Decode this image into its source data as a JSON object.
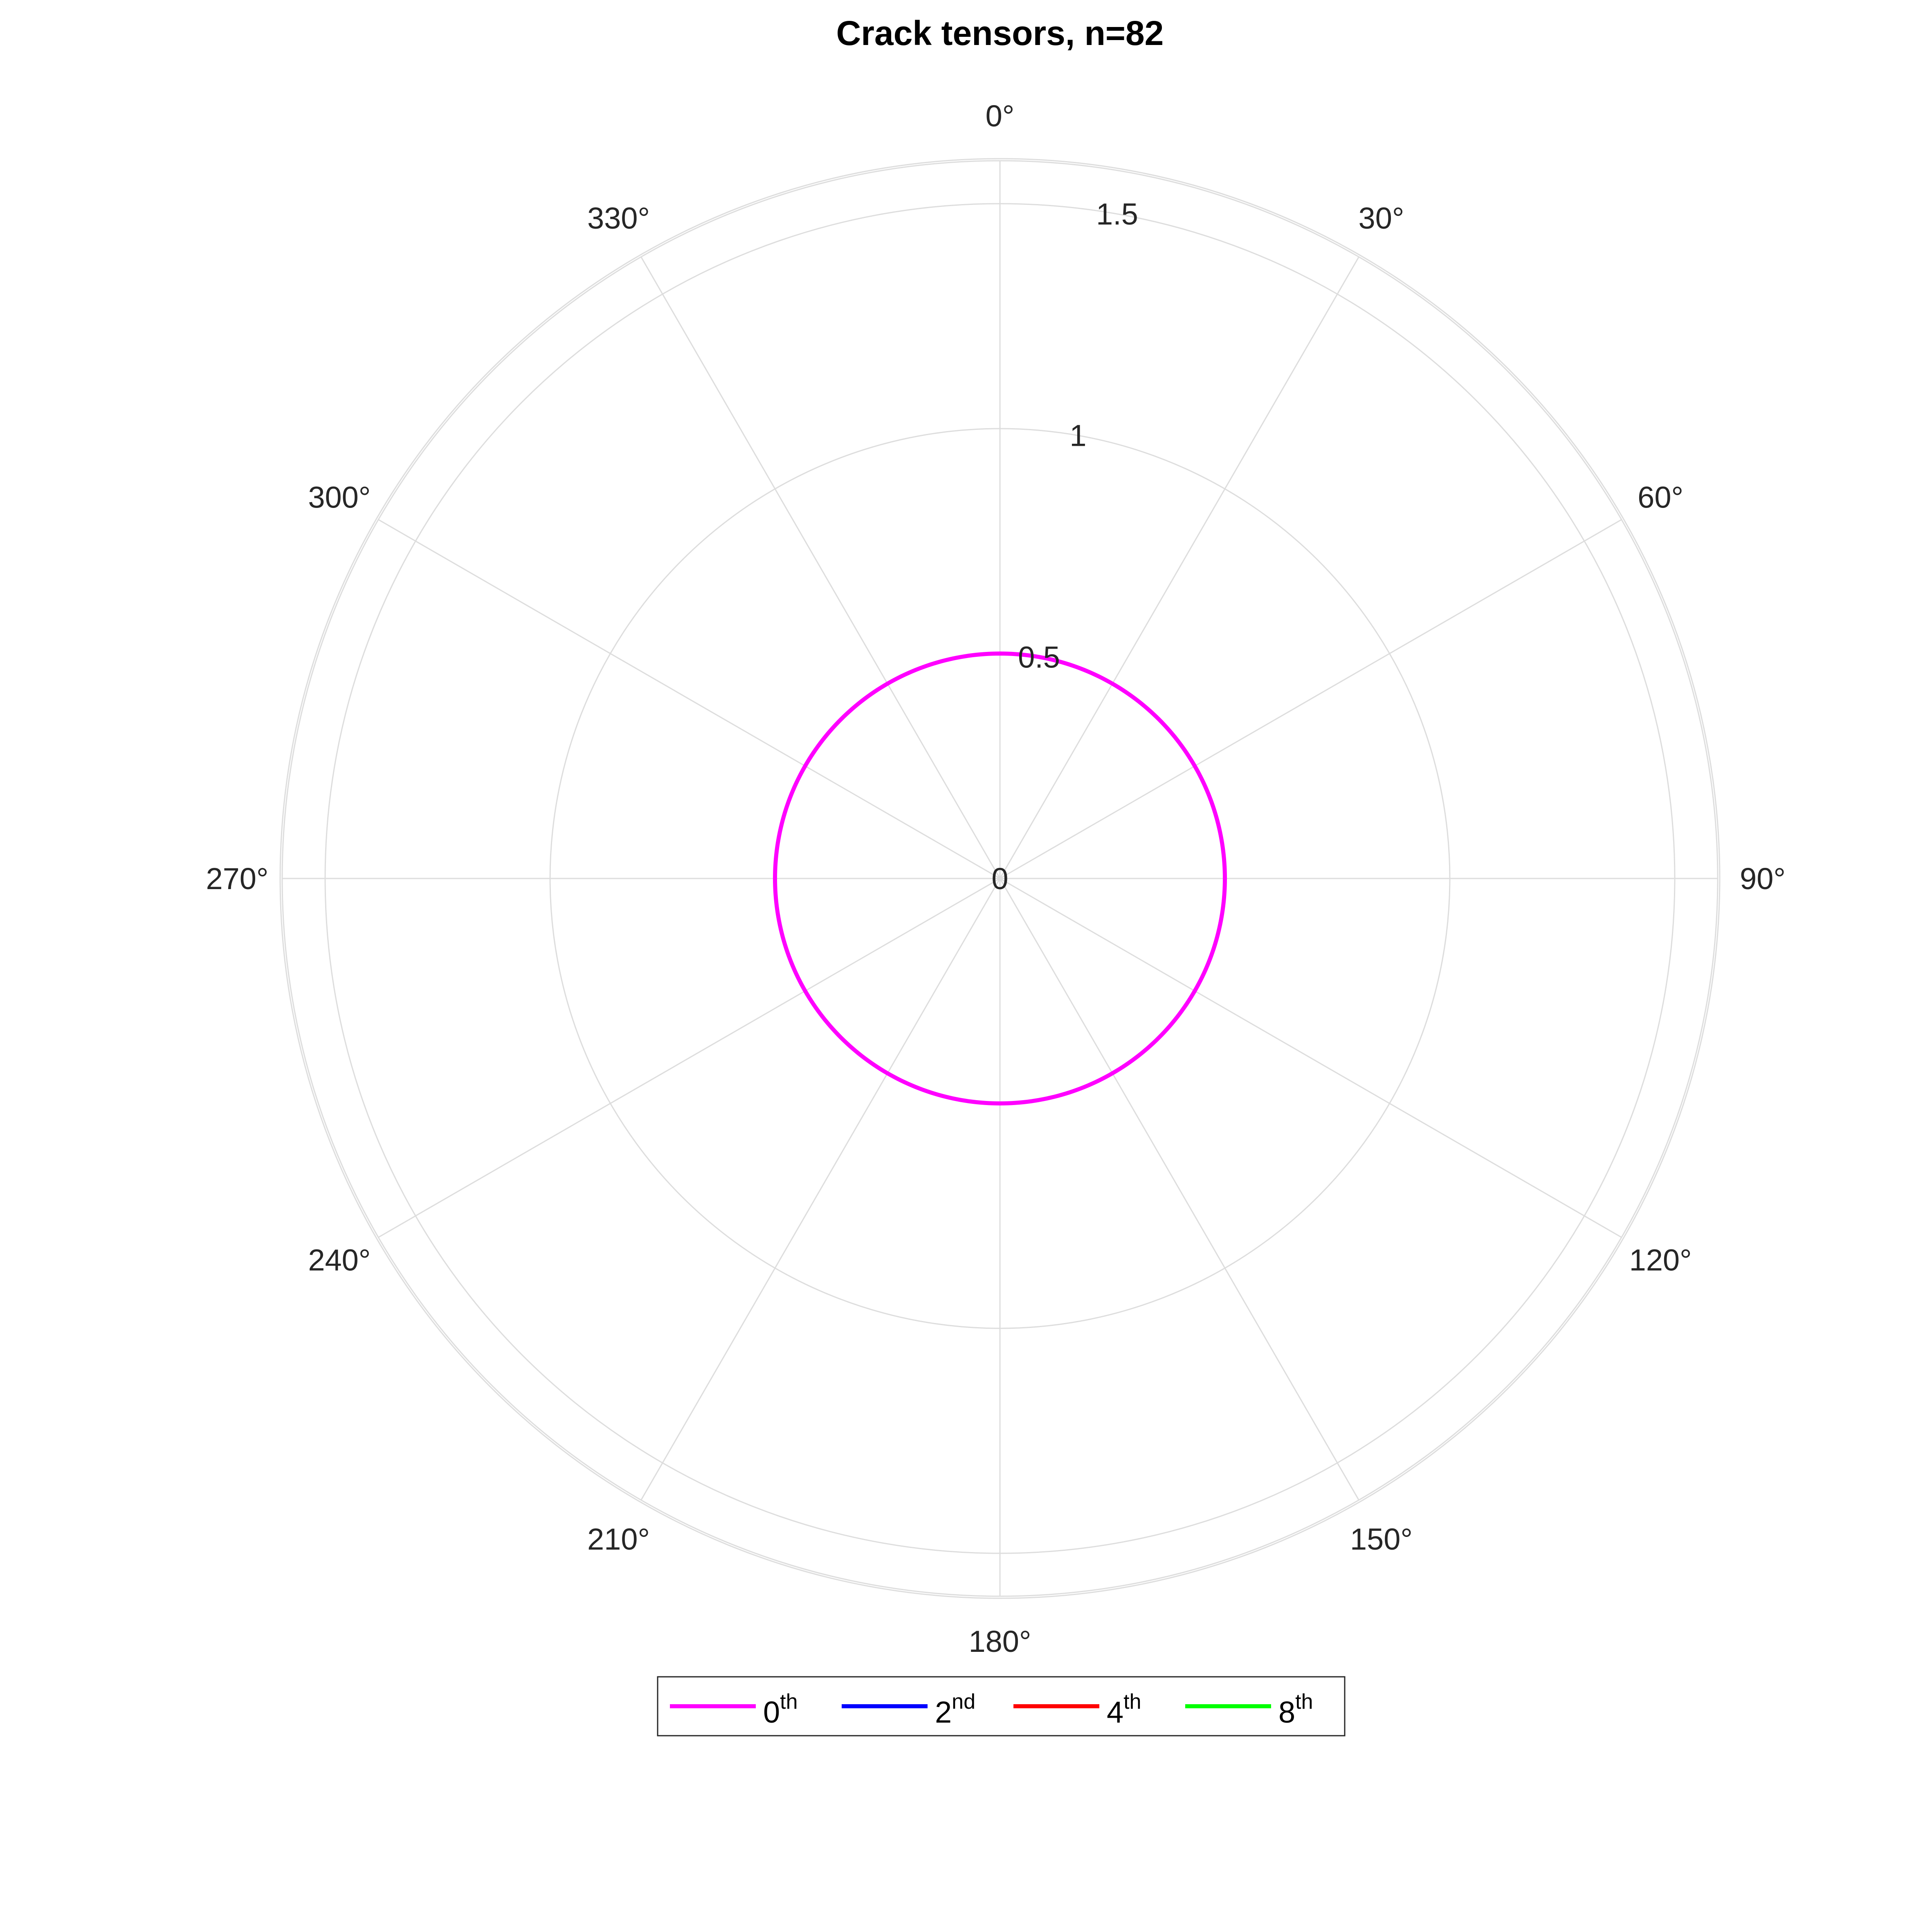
{
  "chart_data": {
    "type": "line",
    "projection": "polar",
    "title": "Crack tensors, n=82",
    "theta_zero_location": "top",
    "theta_direction": "clockwise",
    "theta_ticks": [
      0,
      30,
      60,
      90,
      120,
      150,
      180,
      210,
      240,
      270,
      300,
      330
    ],
    "theta_tick_labels": [
      "0°",
      "30°",
      "60°",
      "90°",
      "120°",
      "150°",
      "180°",
      "210°",
      "240°",
      "270°",
      "300°",
      "330°"
    ],
    "r_ticks": [
      0,
      0.5,
      1,
      1.5
    ],
    "r_tick_labels": [
      "0",
      "0.5",
      "1",
      "1.5"
    ],
    "rlim": [
      0,
      1.6
    ],
    "grid": true,
    "series": [
      {
        "name": "0",
        "name_sup": "th",
        "color": "#ff00ff",
        "theta_deg": [
          0,
          360
        ],
        "r": [
          0.5,
          0.5
        ],
        "visible": true
      },
      {
        "name": "2",
        "name_sup": "nd",
        "color": "#0000ff",
        "visible": false
      },
      {
        "name": "4",
        "name_sup": "th",
        "color": "#ff0000",
        "visible": false
      },
      {
        "name": "8",
        "name_sup": "th",
        "color": "#00ff00",
        "visible": false
      }
    ],
    "legend": {
      "placement": "bottom-center",
      "orientation": "horizontal"
    }
  }
}
